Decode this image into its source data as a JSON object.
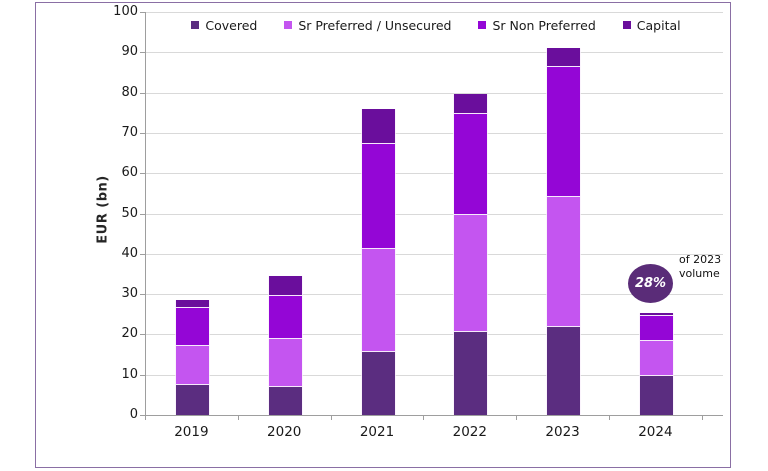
{
  "colors": {
    "frame": "#8a6fa4",
    "gridline": "#d9d9d9",
    "axis": "#9e9e9e",
    "badge": "#5a2c78"
  },
  "chart_data": {
    "type": "bar",
    "subtype": "stacked-vertical",
    "title": "",
    "xlabel": "",
    "ylabel": "EUR (bn)",
    "ylim": [
      0,
      100
    ],
    "yticks": [
      0,
      10,
      20,
      30,
      40,
      50,
      60,
      70,
      80,
      90,
      100
    ],
    "grid": true,
    "legend_position": "top",
    "categories": [
      "2019",
      "2020",
      "2021",
      "2022",
      "2023",
      "2024"
    ],
    "series": [
      {
        "name": "Covered",
        "color": "#5b2d80",
        "values": [
          7.4,
          7.0,
          15.7,
          20.5,
          21.9,
          9.6
        ]
      },
      {
        "name": "Sr Preferred / Unsecured",
        "color": "#c455f0",
        "values": [
          9.7,
          11.9,
          25.5,
          29.2,
          32.1,
          8.7
        ]
      },
      {
        "name": "Sr Non Preferred",
        "color": "#9406d6",
        "values": [
          9.4,
          10.7,
          26.0,
          25.0,
          32.4,
          6.2
        ]
      },
      {
        "name": "Capital",
        "color": "#6a0e9c",
        "values": [
          2.0,
          4.9,
          8.8,
          5.0,
          4.6,
          0.7
        ]
      }
    ],
    "totals": [
      28.5,
      34.5,
      76.0,
      79.7,
      91.0,
      25.2
    ]
  },
  "annotation": {
    "badge_value": "28%",
    "badge_color": "#5a2c78",
    "label_line1": "of 2023",
    "label_line2": "volume"
  }
}
